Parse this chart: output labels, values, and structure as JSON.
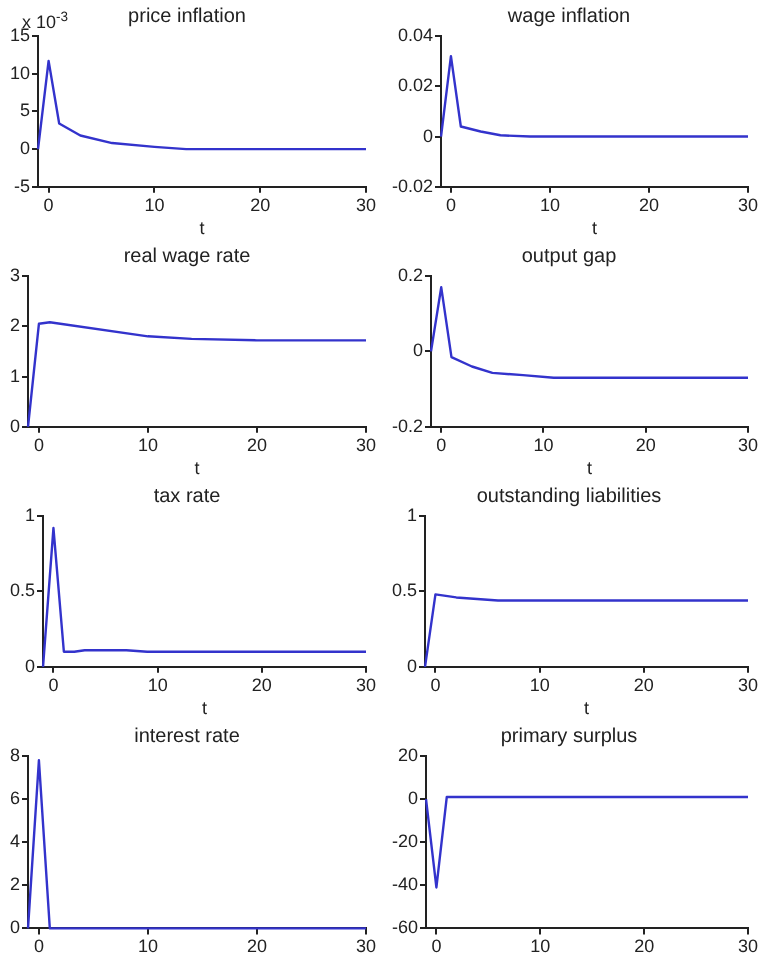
{
  "chart_data": [
    {
      "type": "line",
      "title": "price inflation",
      "xlabel": "t",
      "annotations": [
        "x 10$^{-3}$"
      ],
      "xlim": [
        -1,
        30
      ],
      "xticks": [
        0,
        10,
        20,
        30
      ],
      "ylim": [
        -5,
        15
      ],
      "yticks": [
        -5,
        0,
        5,
        10,
        15
      ],
      "grid": false,
      "legend": false,
      "series": [
        {
          "color": "#3333cc",
          "x": [
            -1,
            0,
            1,
            3,
            6,
            10,
            13,
            30
          ],
          "values": [
            0,
            11.7,
            3.4,
            1.8,
            0.8,
            0.3,
            0,
            0
          ]
        }
      ]
    },
    {
      "type": "line",
      "title": "wage inflation",
      "xlabel": "t",
      "xlim": [
        -1,
        30
      ],
      "xticks": [
        0,
        10,
        20,
        30
      ],
      "ylim": [
        -0.02,
        0.04
      ],
      "yticks": [
        -0.02,
        0,
        0.02,
        0.04
      ],
      "grid": false,
      "legend": false,
      "series": [
        {
          "color": "#3333cc",
          "x": [
            -1,
            0,
            1,
            3,
            5,
            8,
            30
          ],
          "values": [
            0,
            0.032,
            0.004,
            0.002,
            0.0005,
            0,
            0
          ]
        }
      ]
    },
    {
      "type": "line",
      "title": "real wage rate",
      "xlabel": "t",
      "xlim": [
        -1,
        30
      ],
      "xticks": [
        0,
        10,
        20,
        30
      ],
      "ylim": [
        0,
        3
      ],
      "yticks": [
        0,
        1,
        2,
        3
      ],
      "grid": false,
      "legend": false,
      "series": [
        {
          "color": "#3333cc",
          "x": [
            -1,
            0,
            1,
            10,
            14,
            20,
            30
          ],
          "values": [
            0,
            2.05,
            2.08,
            1.8,
            1.75,
            1.72,
            1.72
          ]
        }
      ]
    },
    {
      "type": "line",
      "title": "output gap",
      "xlabel": "t",
      "xlim": [
        -1,
        30
      ],
      "xticks": [
        0,
        10,
        20,
        30
      ],
      "ylim": [
        -0.2,
        0.2
      ],
      "yticks": [
        -0.2,
        0,
        0.2
      ],
      "grid": false,
      "legend": false,
      "series": [
        {
          "color": "#3333cc",
          "x": [
            -1,
            0,
            1,
            3,
            5,
            8,
            11,
            30
          ],
          "values": [
            0,
            0.17,
            -0.015,
            -0.04,
            -0.057,
            -0.063,
            -0.07,
            -0.07
          ]
        }
      ]
    },
    {
      "type": "line",
      "title": "tax rate",
      "xlabel": "t",
      "xlim": [
        -1,
        30
      ],
      "xticks": [
        0,
        10,
        20,
        30
      ],
      "ylim": [
        0,
        1
      ],
      "yticks": [
        0,
        0.5,
        1
      ],
      "grid": false,
      "legend": false,
      "series": [
        {
          "color": "#3333cc",
          "x": [
            -1,
            0,
            1,
            2,
            3,
            7,
            9,
            30
          ],
          "values": [
            0,
            0.92,
            0.1,
            0.1,
            0.11,
            0.11,
            0.1,
            0.1
          ]
        }
      ]
    },
    {
      "type": "line",
      "title": "outstanding liabilities",
      "xlabel": "t",
      "xlim": [
        -1,
        30
      ],
      "xticks": [
        0,
        10,
        20,
        30
      ],
      "ylim": [
        0,
        1
      ],
      "yticks": [
        0,
        0.5,
        1
      ],
      "grid": false,
      "legend": false,
      "series": [
        {
          "color": "#3333cc",
          "x": [
            -1,
            0,
            2,
            6,
            30
          ],
          "values": [
            0,
            0.48,
            0.46,
            0.44,
            0.44
          ]
        }
      ]
    },
    {
      "type": "line",
      "title": "interest rate",
      "xlim": [
        -1,
        30
      ],
      "xticks": [
        0,
        10,
        20,
        30
      ],
      "ylim": [
        0,
        8
      ],
      "yticks": [
        0,
        2,
        4,
        6,
        8
      ],
      "grid": false,
      "legend": false,
      "series": [
        {
          "color": "#3333cc",
          "x": [
            -1,
            0,
            1,
            30
          ],
          "values": [
            0,
            7.8,
            0,
            0
          ]
        }
      ]
    },
    {
      "type": "line",
      "title": "primary surplus",
      "xlim": [
        -1,
        30
      ],
      "xticks": [
        0,
        10,
        20,
        30
      ],
      "ylim": [
        -60,
        20
      ],
      "yticks": [
        -60,
        -40,
        -20,
        0,
        20
      ],
      "grid": false,
      "legend": false,
      "series": [
        {
          "color": "#3333cc",
          "x": [
            -1,
            0,
            1,
            30
          ],
          "values": [
            0,
            -41,
            1,
            1
          ]
        }
      ]
    }
  ]
}
